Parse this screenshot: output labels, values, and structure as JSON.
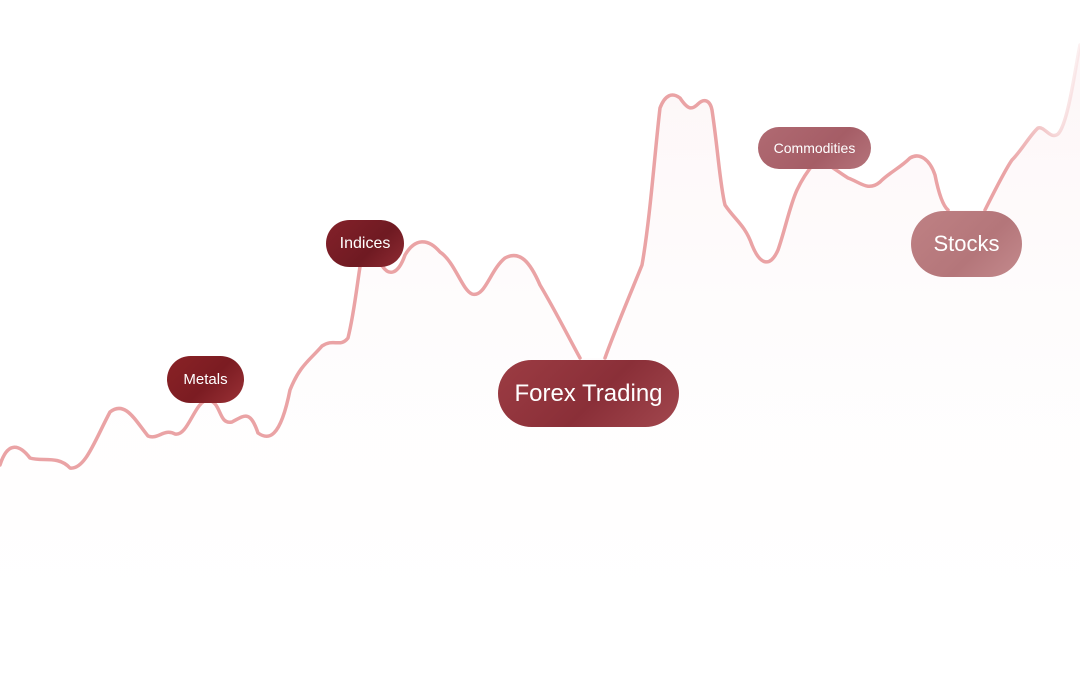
{
  "categories": {
    "metals": "Metals",
    "indices": "Indices",
    "forex": "Forex Trading",
    "commodities": "Commodities",
    "stocks": "Stocks"
  },
  "colors": {
    "line": "#eaa3a5",
    "area_top": "#fbeef0",
    "pill_dark": "#7b1c22",
    "pill_mid": "#8a2f38",
    "pill_light": "#b4767a"
  }
}
